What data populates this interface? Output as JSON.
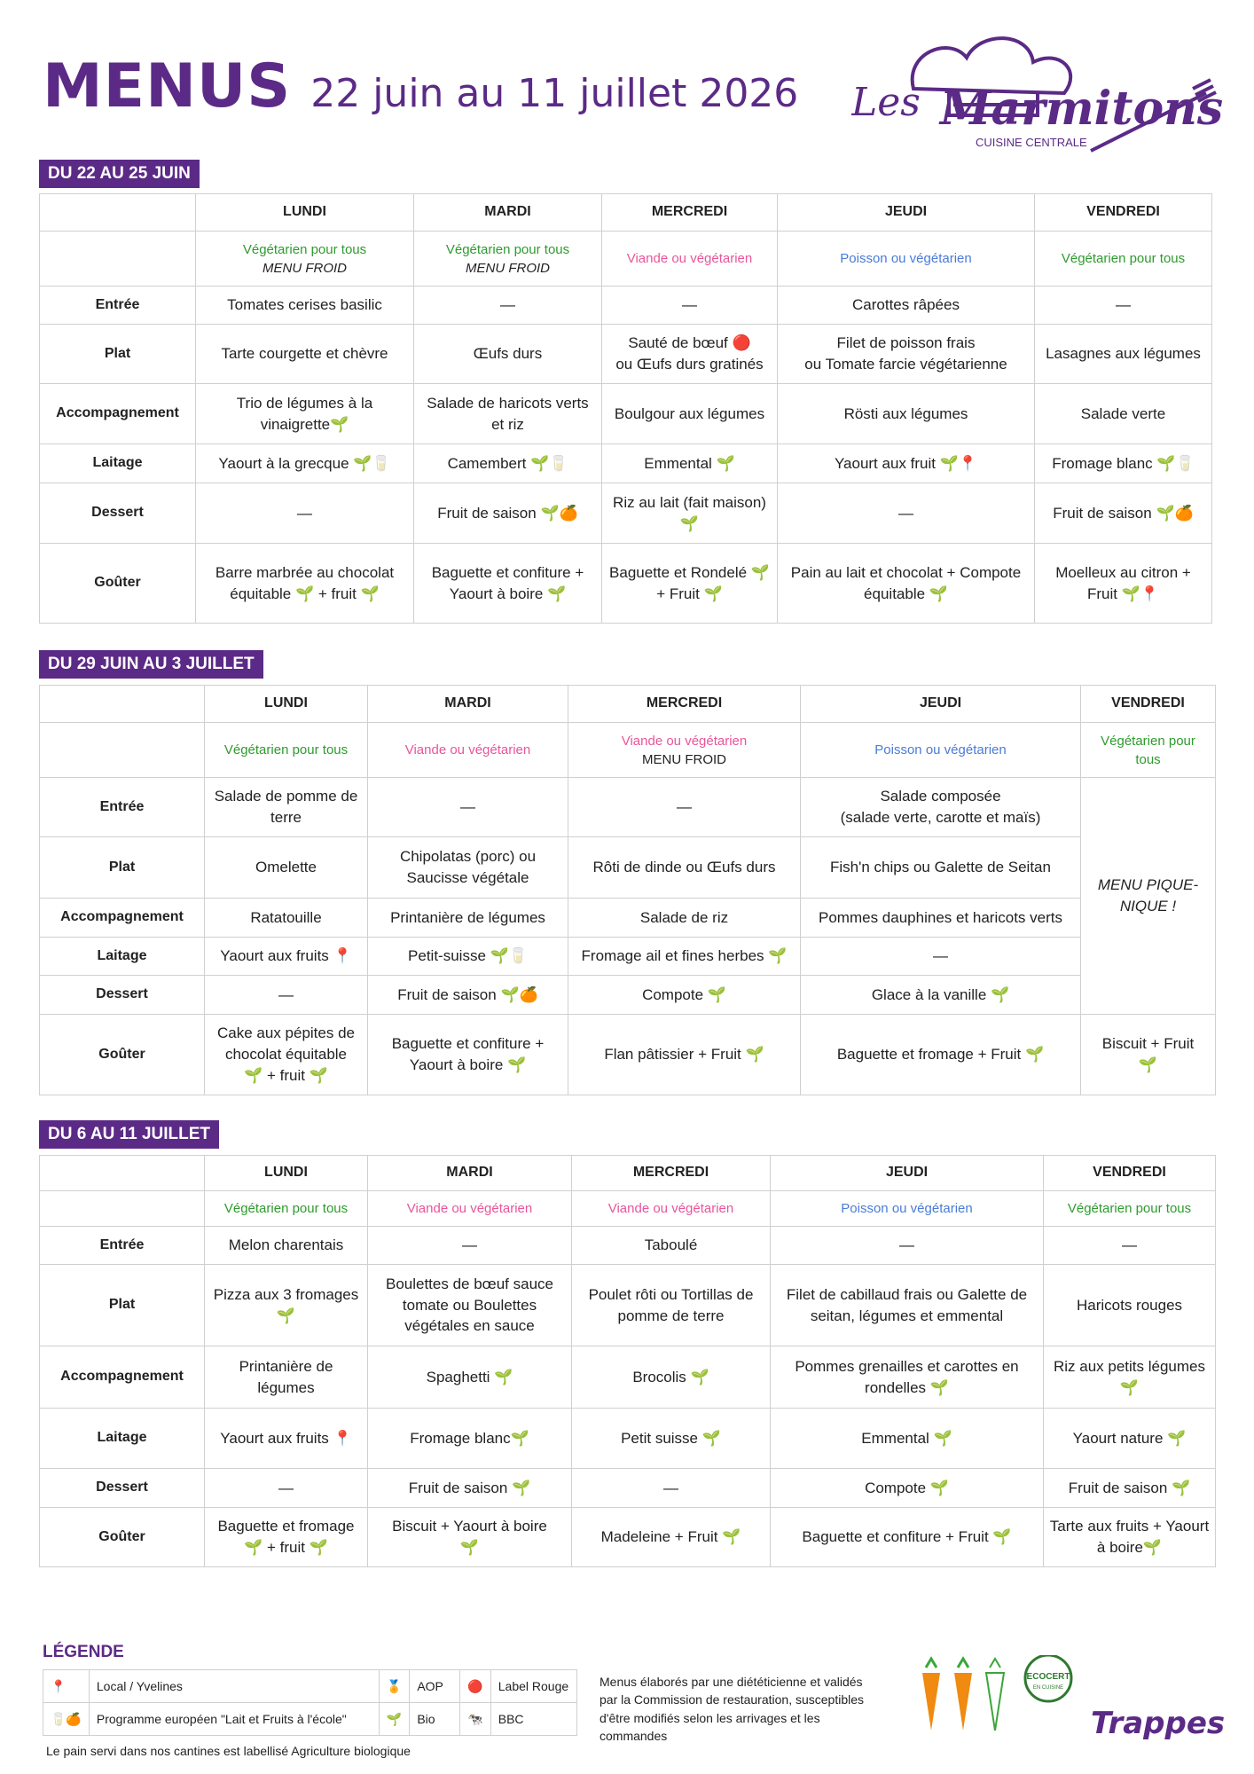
{
  "header": {
    "title": "MENUS",
    "dates": "22 juin au 11 juillet 2026"
  },
  "logo": {
    "line1": "Les Marmitons",
    "line2": "CUISINE CENTRALE"
  },
  "row_labels": [
    "Entrée",
    "Plat",
    "Accompagnement",
    "Laitage",
    "Dessert",
    "Goûter"
  ],
  "days": [
    "LUNDI",
    "MARDI",
    "MERCREDI",
    "JEUDI",
    "VENDREDI"
  ],
  "weeks": [
    {
      "label": "DU 22 AU 25 JUIN",
      "regimes": [
        {
          "text": "Végétarien pour tous",
          "sub": "MENU FROID"
        },
        {
          "text": "Végétarien pour tous",
          "sub": "MENU FROID"
        },
        {
          "text": "Viande ou végétarien",
          "sub": ""
        },
        {
          "text": "Poisson ou végétarien",
          "sub": ""
        },
        {
          "text": "Végétarien pour tous",
          "sub": ""
        }
      ],
      "rows": [
        [
          "Tomates cerises basilic",
          "—",
          "—",
          "Carottes râpées",
          "—"
        ],
        [
          "Tarte courgette et chèvre",
          "Œufs durs",
          "Sauté de bœuf 🔴\nou Œufs durs gratinés",
          "Filet de poisson frais\nou Tomate farcie végétarienne",
          "Lasagnes aux légumes"
        ],
        [
          "Trio de légumes à la vinaigrette🌱",
          "Salade de haricots verts et riz",
          "Boulgour aux légumes",
          "Rösti aux légumes",
          "Salade verte"
        ],
        [
          "Yaourt à la grecque 🌱🥛",
          "Camembert 🌱🥛",
          "Emmental 🌱",
          "Yaourt aux fruit 🌱📍",
          "Fromage blanc 🌱🥛"
        ],
        [
          "—",
          "Fruit de saison 🌱🍊",
          "Riz au lait (fait maison)\n🌱",
          "—",
          "Fruit de saison 🌱🍊"
        ],
        [
          "Barre marbrée au chocolat équitable 🌱 + fruit 🌱",
          "Baguette et confiture + Yaourt à boire 🌱",
          "Baguette et Rondelé 🌱+ Fruit 🌱",
          "Pain au lait et chocolat + Compote équitable 🌱",
          "Moelleux au citron + Fruit 🌱📍"
        ]
      ]
    },
    {
      "label": "DU 29 JUIN AU 3 JUILLET",
      "regimes": [
        {
          "text": "Végétarien pour tous",
          "sub": ""
        },
        {
          "text": "Viande ou végétarien",
          "sub": ""
        },
        {
          "text": "Viande ou végétarien",
          "sub": "MENU FROID"
        },
        {
          "text": "Poisson ou végétarien",
          "sub": ""
        },
        {
          "text": "Végétarien pour tous",
          "sub": ""
        }
      ],
      "picnic": "MENU PIQUE-NIQUE !",
      "rows": [
        [
          "Salade de pomme de terre",
          "—",
          "—",
          "Salade composée\n(salade verte, carotte et maïs)"
        ],
        [
          "Omelette",
          "Chipolatas (porc) ou Saucisse végétale",
          "Rôti de dinde ou Œufs durs",
          "Fish'n chips ou Galette de Seitan"
        ],
        [
          "Ratatouille",
          "Printanière de légumes",
          "Salade de riz",
          "Pommes dauphines et haricots verts"
        ],
        [
          "Yaourt aux fruits 📍",
          "Petit-suisse 🌱🥛",
          "Fromage ail et fines herbes 🌱",
          "—"
        ],
        [
          "—",
          "Fruit de saison 🌱🍊",
          "Compote 🌱",
          "Glace à la vanille 🌱"
        ],
        [
          "Cake aux pépites de chocolat équitable\n🌱 + fruit 🌱",
          "Baguette et confiture + Yaourt à boire 🌱",
          "Flan pâtissier + Fruit 🌱",
          "Baguette et fromage + Fruit 🌱",
          "Biscuit + Fruit\n🌱"
        ]
      ]
    },
    {
      "label": "DU 6 AU 11 JUILLET",
      "regimes": [
        {
          "text": "Végétarien pour tous",
          "sub": ""
        },
        {
          "text": "Viande ou végétarien",
          "sub": ""
        },
        {
          "text": "Viande ou végétarien",
          "sub": ""
        },
        {
          "text": "Poisson ou végétarien",
          "sub": ""
        },
        {
          "text": "Végétarien pour tous",
          "sub": ""
        }
      ],
      "rows": [
        [
          "Melon charentais",
          "—",
          "Taboulé",
          "—",
          "—"
        ],
        [
          "Pizza aux 3 fromages 🌱",
          "Boulettes de bœuf sauce tomate ou Boulettes végétales en sauce",
          "Poulet rôti ou Tortillas de pomme de terre",
          "Filet de cabillaud frais ou Galette de seitan, légumes et emmental",
          "Haricots rouges"
        ],
        [
          "Printanière de légumes",
          "Spaghetti 🌱",
          "Brocolis 🌱",
          "Pommes grenailles et carottes en rondelles 🌱",
          "Riz aux petits légumes 🌱"
        ],
        [
          "Yaourt aux fruits 📍",
          "Fromage blanc🌱",
          "Petit suisse 🌱",
          "Emmental 🌱",
          "Yaourt nature 🌱"
        ],
        [
          "—",
          "Fruit de saison 🌱",
          "—",
          "Compote 🌱",
          "Fruit de saison 🌱"
        ],
        [
          "Baguette et fromage\n🌱 + fruit 🌱",
          "Biscuit + Yaourt à boire\n🌱",
          "Madeleine + Fruit 🌱",
          "Baguette et confiture + Fruit 🌱",
          "Tarte aux fruits + Yaourt à boire🌱"
        ]
      ]
    }
  ],
  "legend": {
    "title": "LÉGENDE",
    "items": [
      {
        "icon": "📍",
        "label": "Local / Yvelines"
      },
      {
        "icon": "🥛🍊",
        "label": "Programme européen \"Lait et Fruits à l'école\""
      },
      {
        "icon": "🏅",
        "label": "AOP"
      },
      {
        "icon": "🌱",
        "label": "Bio"
      },
      {
        "icon": "🔴",
        "label": "Label Rouge"
      },
      {
        "icon": "🐄",
        "label": "BBC"
      }
    ],
    "bread": "Le pain servi dans nos cantines est labellisé Agriculture biologique"
  },
  "note": "Menus élaborés par une diététicienne et validés par la Commission de restauration, susceptibles d'être modifiés selon les arrivages et les commandes",
  "badges": {
    "ecocert": "ECOCERT",
    "ecocert_sub": "EN CUISINE",
    "city": "Trappes"
  },
  "colors": {
    "brand": "#5b2a86",
    "veg": "#2e9b2e",
    "viande": "#e8559b",
    "poisson": "#4a7bd8"
  }
}
